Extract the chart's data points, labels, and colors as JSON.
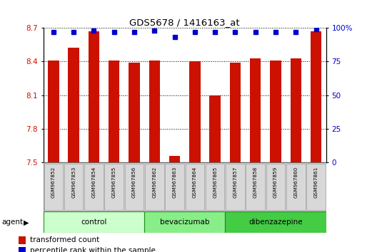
{
  "title": "GDS5678 / 1416163_at",
  "samples": [
    "GSM967852",
    "GSM967853",
    "GSM967854",
    "GSM967855",
    "GSM967856",
    "GSM967862",
    "GSM967863",
    "GSM967864",
    "GSM967865",
    "GSM967857",
    "GSM967858",
    "GSM967859",
    "GSM967860",
    "GSM967861"
  ],
  "bar_values": [
    8.41,
    8.52,
    8.67,
    8.41,
    8.39,
    8.41,
    7.56,
    8.4,
    8.1,
    8.39,
    8.43,
    8.41,
    8.43,
    8.67
  ],
  "percentile_values": [
    97,
    97,
    98,
    97,
    97,
    98,
    93,
    97,
    97,
    97,
    97,
    97,
    97,
    99
  ],
  "bar_color": "#cc1100",
  "dot_color": "#0000cc",
  "ylim_left": [
    7.5,
    8.7
  ],
  "ylim_right": [
    0,
    100
  ],
  "yticks_left": [
    7.5,
    7.8,
    8.1,
    8.4,
    8.7
  ],
  "yticks_right": [
    0,
    25,
    50,
    75,
    100
  ],
  "ytick_labels_right": [
    "0",
    "25",
    "50",
    "75",
    "100%"
  ],
  "groups": [
    {
      "label": "control",
      "start": 0,
      "end": 5,
      "color": "#ccffcc"
    },
    {
      "label": "bevacizumab",
      "start": 5,
      "end": 9,
      "color": "#88ee88"
    },
    {
      "label": "dibenzazepine",
      "start": 9,
      "end": 14,
      "color": "#44cc44"
    }
  ],
  "agent_label": "agent",
  "legend_bar_label": "transformed count",
  "legend_dot_label": "percentile rank within the sample",
  "background_color": "#ffffff",
  "plot_bg_color": "#ffffff",
  "grid_color": "#000000",
  "tick_label_color_left": "#cc1100",
  "tick_label_color_right": "#0000cc",
  "sample_box_color": "#d8d8d8",
  "sample_box_edge": "#999999"
}
